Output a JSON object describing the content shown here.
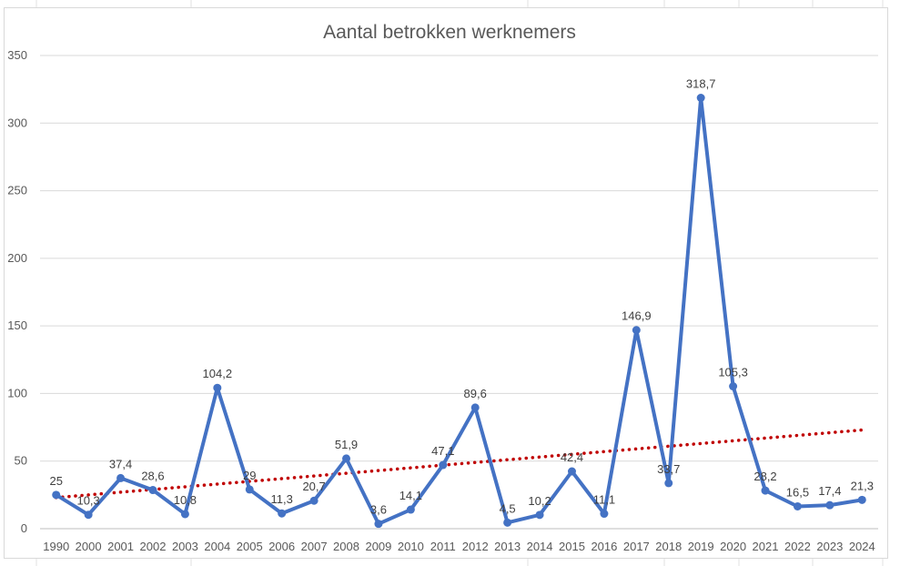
{
  "chart_data": {
    "type": "line",
    "title": "Aantal betrokken werknemers",
    "xlabel": "",
    "ylabel": "",
    "categories": [
      "1990",
      "2000",
      "2001",
      "2002",
      "2003",
      "2004",
      "2005",
      "2006",
      "2007",
      "2008",
      "2009",
      "2010",
      "2011",
      "2012",
      "2013",
      "2014",
      "2015",
      "2016",
      "2017",
      "2018",
      "2019",
      "2020",
      "2021",
      "2022",
      "2023",
      "2024"
    ],
    "series": [
      {
        "values": [
          25,
          10.3,
          37.4,
          28.6,
          10.8,
          104.2,
          29,
          11.3,
          20.7,
          51.9,
          3.6,
          14.1,
          47.1,
          89.6,
          4.5,
          10.2,
          42.4,
          11.1,
          146.9,
          33.7,
          318.7,
          105.3,
          28.2,
          16.5,
          17.4,
          21.3
        ],
        "data_labels": [
          "25",
          "10,3",
          "37,4",
          "28,6",
          "10,8",
          "104,2",
          "29",
          "11,3",
          "20,7",
          "51,9",
          "3,6",
          "14,1",
          "47,1",
          "89,6",
          "4,5",
          "10,2",
          "42,4",
          "11,1",
          "146,9",
          "33,7",
          "318,7",
          "105,3",
          "28,2",
          "16,5",
          "17,4",
          "21,3"
        ],
        "color": "#4472c4"
      }
    ],
    "trendline": {
      "type": "linear",
      "color": "#c00000",
      "style": "dotted",
      "start": 23,
      "end": 73
    },
    "ylim": [
      0,
      350
    ],
    "yticks": [
      0,
      50,
      100,
      150,
      200,
      250,
      300,
      350
    ],
    "grid": true,
    "legend": "none"
  }
}
